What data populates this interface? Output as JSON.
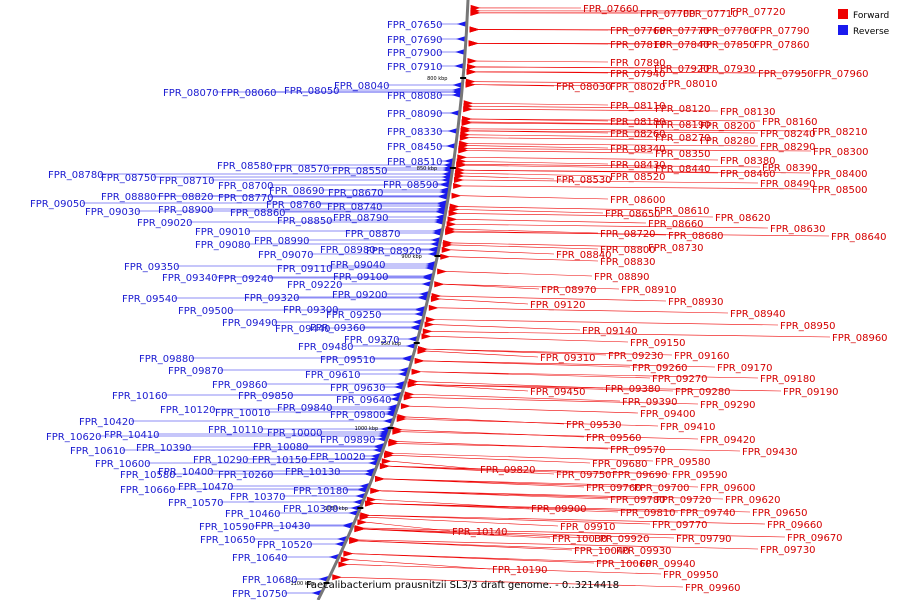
{
  "title": "Faecalibacterium prausnitzii SL3/3 draft genome. - 0..3214418",
  "legend": [
    {
      "label": "Forward",
      "color": "#ee0000"
    },
    {
      "label": "Reverse",
      "color": "#1a1aee"
    }
  ],
  "colors": {
    "forward": "#ee0000",
    "reverse": "#1a1aee",
    "backbone": "#777777"
  },
  "ticks": [
    {
      "label": "800 kbp",
      "y": 78
    },
    {
      "label": "850 kbp",
      "y": 168
    },
    {
      "label": "900 kbp",
      "y": 256
    },
    {
      "label": "950 kbp",
      "y": 343
    },
    {
      "label": "1000 kbp",
      "y": 428
    },
    {
      "label": "1050 kbp",
      "y": 508
    },
    {
      "label": "1100 kbp",
      "y": 583
    }
  ],
  "forward_labels": [
    [
      "FPR_07660",
      583,
      5
    ],
    [
      "FPR_07700",
      640,
      10
    ],
    [
      "FPR_07710",
      683,
      10
    ],
    [
      "FPR_07720",
      730,
      8
    ],
    [
      "FPR_07760",
      610,
      27
    ],
    [
      "FPR_07770",
      654,
      27
    ],
    [
      "FPR_07780",
      700,
      27
    ],
    [
      "FPR_07790",
      754,
      27
    ],
    [
      "FPR_07810",
      610,
      41
    ],
    [
      "FPR_07840",
      654,
      41
    ],
    [
      "FPR_07850",
      700,
      41
    ],
    [
      "FPR_07860",
      754,
      41
    ],
    [
      "FPR_07890",
      610,
      59
    ],
    [
      "FPR_07920",
      654,
      65
    ],
    [
      "FPR_07930",
      700,
      65
    ],
    [
      "FPR_07940",
      610,
      70
    ],
    [
      "FPR_07950",
      758,
      70
    ],
    [
      "FPR_07960",
      813,
      70
    ],
    [
      "FPR_08010",
      662,
      80
    ],
    [
      "FPR_08020",
      610,
      83
    ],
    [
      "FPR_08030",
      556,
      83
    ],
    [
      "FPR_08110",
      610,
      102
    ],
    [
      "FPR_08120",
      655,
      105
    ],
    [
      "FPR_08130",
      720,
      108
    ],
    [
      "FPR_08180",
      610,
      118
    ],
    [
      "FPR_08190",
      655,
      121
    ],
    [
      "FPR_08200",
      700,
      122
    ],
    [
      "FPR_08160",
      762,
      118
    ],
    [
      "FPR_08260",
      610,
      130
    ],
    [
      "FPR_08270",
      655,
      134
    ],
    [
      "FPR_08280",
      700,
      137
    ],
    [
      "FPR_08240",
      760,
      130
    ],
    [
      "FPR_08210",
      812,
      128
    ],
    [
      "FPR_08290",
      760,
      143
    ],
    [
      "FPR_08300",
      813,
      148
    ],
    [
      "FPR_08340",
      610,
      145
    ],
    [
      "FPR_08350",
      655,
      150
    ],
    [
      "FPR_08380",
      720,
      157
    ],
    [
      "FPR_08430",
      610,
      161
    ],
    [
      "FPR_08440",
      655,
      165
    ],
    [
      "FPR_08390",
      762,
      164
    ],
    [
      "FPR_08460",
      720,
      170
    ],
    [
      "FPR_08400",
      812,
      170
    ],
    [
      "FPR_08520",
      610,
      173
    ],
    [
      "FPR_08530",
      556,
      176
    ],
    [
      "FPR_08490",
      760,
      180
    ],
    [
      "FPR_08500",
      812,
      186
    ],
    [
      "FPR_08600",
      610,
      196
    ],
    [
      "FPR_08610",
      654,
      207
    ],
    [
      "FPR_08650",
      605,
      210
    ],
    [
      "FPR_08620",
      715,
      214
    ],
    [
      "FPR_08660",
      648,
      220
    ],
    [
      "FPR_08630",
      770,
      225
    ],
    [
      "FPR_08680",
      668,
      232
    ],
    [
      "FPR_08720",
      600,
      230
    ],
    [
      "FPR_08640",
      831,
      233
    ],
    [
      "FPR_08730",
      648,
      244
    ],
    [
      "FPR_08800",
      600,
      246
    ],
    [
      "FPR_08840",
      556,
      251
    ],
    [
      "FPR_08830",
      600,
      258
    ],
    [
      "FPR_08890",
      594,
      273
    ],
    [
      "FPR_08970",
      541,
      286
    ],
    [
      "FPR_08910",
      621,
      286
    ],
    [
      "FPR_08930",
      668,
      298
    ],
    [
      "FPR_09120",
      530,
      301
    ],
    [
      "FPR_08940",
      730,
      310
    ],
    [
      "FPR_08950",
      780,
      322
    ],
    [
      "FPR_08960",
      832,
      334
    ],
    [
      "FPR_09140",
      582,
      327
    ],
    [
      "FPR_09150",
      630,
      339
    ],
    [
      "FPR_09310",
      540,
      354
    ],
    [
      "FPR_09230",
      608,
      352
    ],
    [
      "FPR_09160",
      674,
      352
    ],
    [
      "FPR_09260",
      632,
      364
    ],
    [
      "FPR_09170",
      717,
      364
    ],
    [
      "FPR_09270",
      652,
      375
    ],
    [
      "FPR_09180",
      760,
      375
    ],
    [
      "FPR_09450",
      530,
      388
    ],
    [
      "FPR_09380",
      605,
      385
    ],
    [
      "FPR_09280",
      675,
      388
    ],
    [
      "FPR_09190",
      783,
      388
    ],
    [
      "FPR_09390",
      622,
      398
    ],
    [
      "FPR_09290",
      700,
      401
    ],
    [
      "FPR_09400",
      640,
      410
    ],
    [
      "FPR_09410",
      660,
      423
    ],
    [
      "FPR_09530",
      566,
      421
    ],
    [
      "FPR_09420",
      700,
      436
    ],
    [
      "FPR_09560",
      586,
      434
    ],
    [
      "FPR_09430",
      742,
      448
    ],
    [
      "FPR_09570",
      610,
      446
    ],
    [
      "FPR_09580",
      655,
      458
    ],
    [
      "FPR_09680",
      592,
      460
    ],
    [
      "FPR_09820",
      480,
      466
    ],
    [
      "FPR_09750",
      556,
      471
    ],
    [
      "FPR_09690",
      612,
      471
    ],
    [
      "FPR_09590",
      672,
      471
    ],
    [
      "FPR_09760",
      586,
      484
    ],
    [
      "FPR_09700",
      634,
      484
    ],
    [
      "FPR_09600",
      700,
      484
    ],
    [
      "FPR_09780",
      610,
      496
    ],
    [
      "FPR_09720",
      656,
      496
    ],
    [
      "FPR_09620",
      725,
      496
    ],
    [
      "FPR_09900",
      531,
      505
    ],
    [
      "FPR_09810",
      620,
      509
    ],
    [
      "FPR_09740",
      680,
      509
    ],
    [
      "FPR_09650",
      752,
      509
    ],
    [
      "FPR_09910",
      560,
      523
    ],
    [
      "FPR_09770",
      652,
      521
    ],
    [
      "FPR_09660",
      767,
      521
    ],
    [
      "FPR_10140",
      452,
      528
    ],
    [
      "FPR_10030",
      552,
      535
    ],
    [
      "FPR_09920",
      594,
      535
    ],
    [
      "FPR_09790",
      676,
      535
    ],
    [
      "FPR_09670",
      787,
      534
    ],
    [
      "FPR_10040",
      574,
      547
    ],
    [
      "FPR_09930",
      616,
      547
    ],
    [
      "FPR_09730",
      760,
      546
    ],
    [
      "FPR_10060",
      596,
      560
    ],
    [
      "FPR_09940",
      640,
      560
    ],
    [
      "FPR_10190",
      492,
      566
    ],
    [
      "FPR_09950",
      663,
      571
    ],
    [
      "FPR_09960",
      685,
      584
    ]
  ],
  "reverse_labels": [
    [
      "FPR_07650",
      387,
      20
    ],
    [
      "FPR_07690",
      387,
      35
    ],
    [
      "FPR_07900",
      387,
      48
    ],
    [
      "FPR_07910",
      387,
      62
    ],
    [
      "FPR_08040",
      334,
      81
    ],
    [
      "FPR_08050",
      284,
      86
    ],
    [
      "FPR_08060",
      221,
      88
    ],
    [
      "FPR_08070",
      163,
      88
    ],
    [
      "FPR_08080",
      387,
      91
    ],
    [
      "FPR_08090",
      387,
      109
    ],
    [
      "FPR_08330",
      387,
      127
    ],
    [
      "FPR_08450",
      387,
      142
    ],
    [
      "FPR_08510",
      387,
      157
    ],
    [
      "FPR_08580",
      217,
      161
    ],
    [
      "FPR_08570",
      274,
      164
    ],
    [
      "FPR_08550",
      332,
      166
    ],
    [
      "FPR_08780",
      48,
      170
    ],
    [
      "FPR_08750",
      101,
      173
    ],
    [
      "FPR_08710",
      159,
      176
    ],
    [
      "FPR_08590",
      383,
      180
    ],
    [
      "FPR_08700",
      218,
      181
    ],
    [
      "FPR_08690",
      269,
      186
    ],
    [
      "FPR_08670",
      328,
      188
    ],
    [
      "FPR_08880",
      101,
      192
    ],
    [
      "FPR_08820",
      158,
      192
    ],
    [
      "FPR_08770",
      218,
      193
    ],
    [
      "FPR_09050",
      30,
      199
    ],
    [
      "FPR_08760",
      266,
      200
    ],
    [
      "FPR_08740",
      327,
      202
    ],
    [
      "FPR_08900",
      158,
      205
    ],
    [
      "FPR_09030",
      85,
      207
    ],
    [
      "FPR_08860",
      230,
      208
    ],
    [
      "FPR_08790",
      333,
      213
    ],
    [
      "FPR_09020",
      137,
      218
    ],
    [
      "FPR_08850",
      277,
      216
    ],
    [
      "FPR_09010",
      195,
      227
    ],
    [
      "FPR_08870",
      345,
      229
    ],
    [
      "FPR_08990",
      254,
      236
    ],
    [
      "FPR_09080",
      195,
      240
    ],
    [
      "FPR_08980",
      320,
      245
    ],
    [
      "FPR_08920",
      366,
      246
    ],
    [
      "FPR_09070",
      258,
      250
    ],
    [
      "FPR_09040",
      330,
      260
    ],
    [
      "FPR_09350",
      124,
      262
    ],
    [
      "FPR_09110",
      277,
      264
    ],
    [
      "FPR_09100",
      333,
      272
    ],
    [
      "FPR_09340",
      162,
      273
    ],
    [
      "FPR_09240",
      218,
      274
    ],
    [
      "FPR_09220",
      287,
      280
    ],
    [
      "FPR_09200",
      332,
      290
    ],
    [
      "FPR_09320",
      244,
      293
    ],
    [
      "FPR_09540",
      122,
      294
    ],
    [
      "FPR_09300",
      283,
      305
    ],
    [
      "FPR_09500",
      178,
      306
    ],
    [
      "FPR_09250",
      326,
      310
    ],
    [
      "FPR_09490",
      222,
      318
    ],
    [
      "FPR_09440",
      275,
      324
    ],
    [
      "FPR_09360",
      310,
      323
    ],
    [
      "FPR_09370",
      344,
      335
    ],
    [
      "FPR_09480",
      298,
      342
    ],
    [
      "FPR_09510",
      320,
      355
    ],
    [
      "FPR_09880",
      139,
      354
    ],
    [
      "FPR_09870",
      168,
      366
    ],
    [
      "FPR_09610",
      305,
      370
    ],
    [
      "FPR_09860",
      212,
      380
    ],
    [
      "FPR_09630",
      330,
      383
    ],
    [
      "FPR_10160",
      112,
      391
    ],
    [
      "FPR_09850",
      238,
      391
    ],
    [
      "FPR_09640",
      336,
      395
    ],
    [
      "FPR_10120",
      160,
      405
    ],
    [
      "FPR_10010",
      215,
      408
    ],
    [
      "FPR_09840",
      277,
      403
    ],
    [
      "FPR_09800",
      330,
      410
    ],
    [
      "FPR_10420",
      79,
      417
    ],
    [
      "FPR_10110",
      208,
      425
    ],
    [
      "FPR_10000",
      267,
      428
    ],
    [
      "FPR_09890",
      320,
      435
    ],
    [
      "FPR_10410",
      104,
      430
    ],
    [
      "FPR_10620",
      46,
      432
    ],
    [
      "FPR_10390",
      136,
      443
    ],
    [
      "FPR_10080",
      253,
      442
    ],
    [
      "FPR_10610",
      70,
      446
    ],
    [
      "FPR_10020",
      310,
      452
    ],
    [
      "FPR_10290",
      193,
      455
    ],
    [
      "FPR_10150",
      252,
      455
    ],
    [
      "FPR_10600",
      95,
      459
    ],
    [
      "FPR_10400",
      158,
      467
    ],
    [
      "FPR_10260",
      218,
      470
    ],
    [
      "FPR_10130",
      285,
      467
    ],
    [
      "FPR_10580",
      120,
      470
    ],
    [
      "FPR_10470",
      178,
      482
    ],
    [
      "FPR_10660",
      120,
      485
    ],
    [
      "FPR_10180",
      293,
      486
    ],
    [
      "FPR_10370",
      230,
      492
    ],
    [
      "FPR_10570",
      168,
      498
    ],
    [
      "FPR_10300",
      283,
      504
    ],
    [
      "FPR_10460",
      225,
      509
    ],
    [
      "FPR_10590",
      199,
      522
    ],
    [
      "FPR_10430",
      255,
      521
    ],
    [
      "FPR_10650",
      200,
      535
    ],
    [
      "FPR_10520",
      257,
      540
    ],
    [
      "FPR_10640",
      232,
      553
    ],
    [
      "FPR_10680",
      242,
      575
    ],
    [
      "FPR_10750",
      232,
      589
    ]
  ]
}
